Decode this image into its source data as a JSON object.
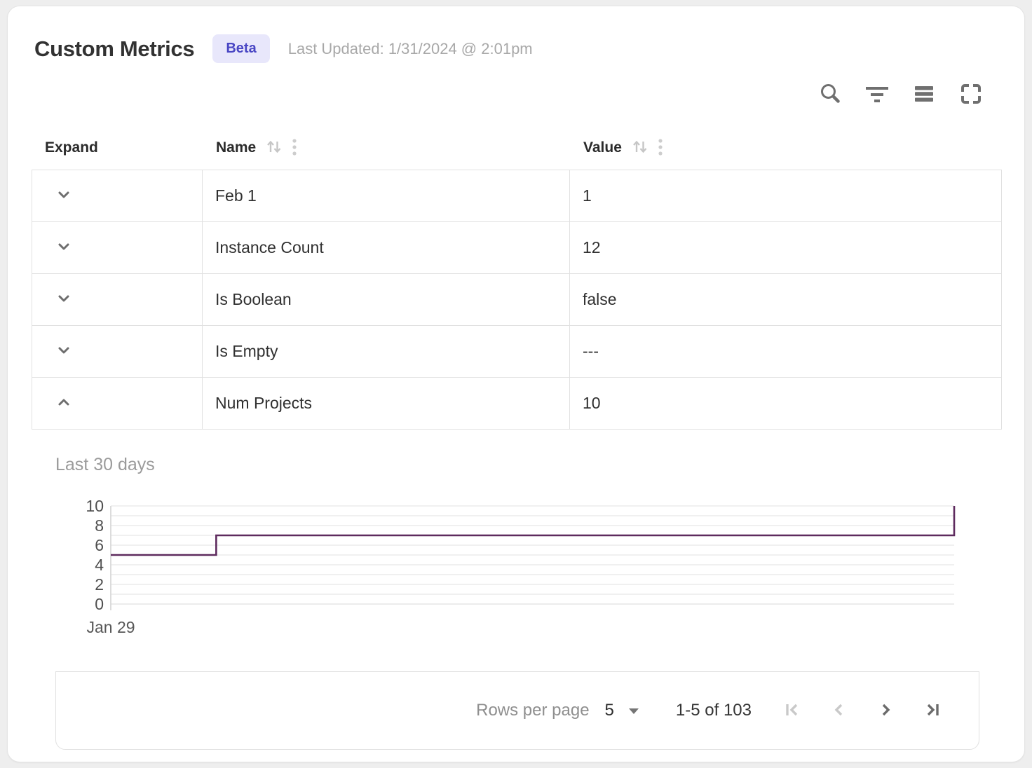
{
  "header": {
    "title": "Custom Metrics",
    "badge": "Beta",
    "last_updated": "Last Updated: 1/31/2024 @ 2:01pm"
  },
  "toolbar": {
    "icons": [
      "search-icon",
      "filter-icon",
      "density-icon",
      "fullscreen-icon"
    ]
  },
  "table": {
    "columns": [
      {
        "label": "Expand",
        "sortable": false
      },
      {
        "label": "Name",
        "sortable": true
      },
      {
        "label": "Value",
        "sortable": true
      }
    ],
    "rows": [
      {
        "name": "Feb 1",
        "value": "1",
        "expanded": false
      },
      {
        "name": "Instance Count",
        "value": "12",
        "expanded": false
      },
      {
        "name": "Is Boolean",
        "value": "false",
        "expanded": false
      },
      {
        "name": "Is Empty",
        "value": "---",
        "expanded": false
      },
      {
        "name": "Num Projects",
        "value": "10",
        "expanded": true
      }
    ]
  },
  "chart_data": {
    "type": "line",
    "subtype": "step-after",
    "title": "Last 30 days",
    "series": [
      {
        "name": "Num Projects",
        "color": "#5e2b5e",
        "points": [
          {
            "x_frac": 0.0,
            "y": 5
          },
          {
            "x_frac": 0.125,
            "y": 7
          },
          {
            "x_frac": 1.0,
            "y": 10
          }
        ]
      }
    ],
    "ylim": [
      0,
      10
    ],
    "y_tick_labels": [
      0,
      2,
      4,
      6,
      8,
      10
    ],
    "grid_step": 1,
    "x_tick_labels": [
      "Jan 29"
    ],
    "legend": "none",
    "grid": "horizontal"
  },
  "pagination": {
    "rows_per_page_label": "Rows per page",
    "rows_per_page_value": "5",
    "range_label": "1-5 of 103",
    "first_disabled": true,
    "prev_disabled": true,
    "next_disabled": false,
    "last_disabled": false
  },
  "colors": {
    "badge_bg": "#e8e7fb",
    "badge_text": "#4946c4",
    "icon_gray": "#6f6f6f",
    "sort_icon_gray": "#c6c6c6",
    "line_color": "#5e2b5e",
    "grid_line": "#ececec",
    "disabled_icon": "#c9c9c9"
  }
}
